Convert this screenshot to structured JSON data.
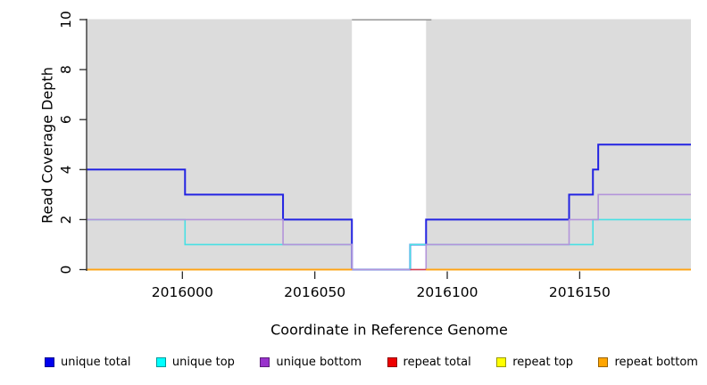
{
  "chart_data": {
    "type": "line",
    "subtype": "step",
    "title": "",
    "xlabel": "Coordinate in Reference Genome",
    "ylabel": "Read Coverage Depth",
    "xlim": [
      2015964,
      2016192
    ],
    "ylim": [
      0,
      10
    ],
    "x_ticks": [
      2016000,
      2016050,
      2016100,
      2016150
    ],
    "x_tick_labels": [
      "2016000",
      "2016050",
      "2016100",
      "2016150"
    ],
    "y_ticks": [
      0,
      2,
      4,
      6,
      8,
      10
    ],
    "y_tick_labels": [
      "0",
      "2",
      "4",
      "6",
      "8",
      "10"
    ],
    "grid": false,
    "legend_position": "bottom",
    "background": {
      "plot_fill": "#dcdcdc",
      "gap_region": {
        "x1": 2016064,
        "x2": 2016092,
        "fill": "#ffffff",
        "top_border": "#8c8c8c"
      }
    },
    "axis_color": "#2a2a2a",
    "series": [
      {
        "name": "unique total",
        "color": "#2323e2",
        "legend_color": "#0000ee",
        "line_width": 2.0,
        "steps": [
          [
            2015964,
            4
          ],
          [
            2016001,
            3
          ],
          [
            2016038,
            2
          ],
          [
            2016064,
            0
          ],
          [
            2016086,
            1
          ],
          [
            2016092,
            2
          ],
          [
            2016146,
            3
          ],
          [
            2016155,
            4
          ],
          [
            2016157,
            5
          ]
        ],
        "end_x": 2016192
      },
      {
        "name": "unique top",
        "color": "#48e0e4",
        "legend_color": "#00ffff",
        "line_width": 1.6,
        "steps": [
          [
            2015964,
            2
          ],
          [
            2016001,
            1
          ],
          [
            2016064,
            0
          ],
          [
            2016086,
            1
          ],
          [
            2016155,
            2
          ]
        ],
        "end_x": 2016192
      },
      {
        "name": "unique bottom",
        "color": "#b394da",
        "legend_color": "#9932cc",
        "line_width": 1.6,
        "steps": [
          [
            2015964,
            2
          ],
          [
            2016038,
            1
          ],
          [
            2016064,
            0
          ],
          [
            2016092,
            1
          ],
          [
            2016146,
            2
          ],
          [
            2016157,
            3
          ]
        ],
        "end_x": 2016192
      },
      {
        "name": "repeat total",
        "color": "#d6404d",
        "legend_color": "#ee0000",
        "line_width": 1.6,
        "steps": [
          [
            2015964,
            0
          ]
        ],
        "gap": [
          2016064,
          2016086
        ],
        "end_x": 2016192
      },
      {
        "name": "repeat top",
        "color": "#ffff00",
        "legend_color": "#ffff00",
        "line_width": 1.6,
        "steps": [
          [
            2015964,
            0
          ]
        ],
        "gap": [
          2016064,
          2016092
        ],
        "end_x": 2016192
      },
      {
        "name": "repeat bottom",
        "color": "#ffa216",
        "legend_color": "#ffa500",
        "line_width": 1.8,
        "steps": [
          [
            2015964,
            0
          ]
        ],
        "gap": [
          2016064,
          2016092
        ],
        "end_x": 2016192
      }
    ]
  }
}
